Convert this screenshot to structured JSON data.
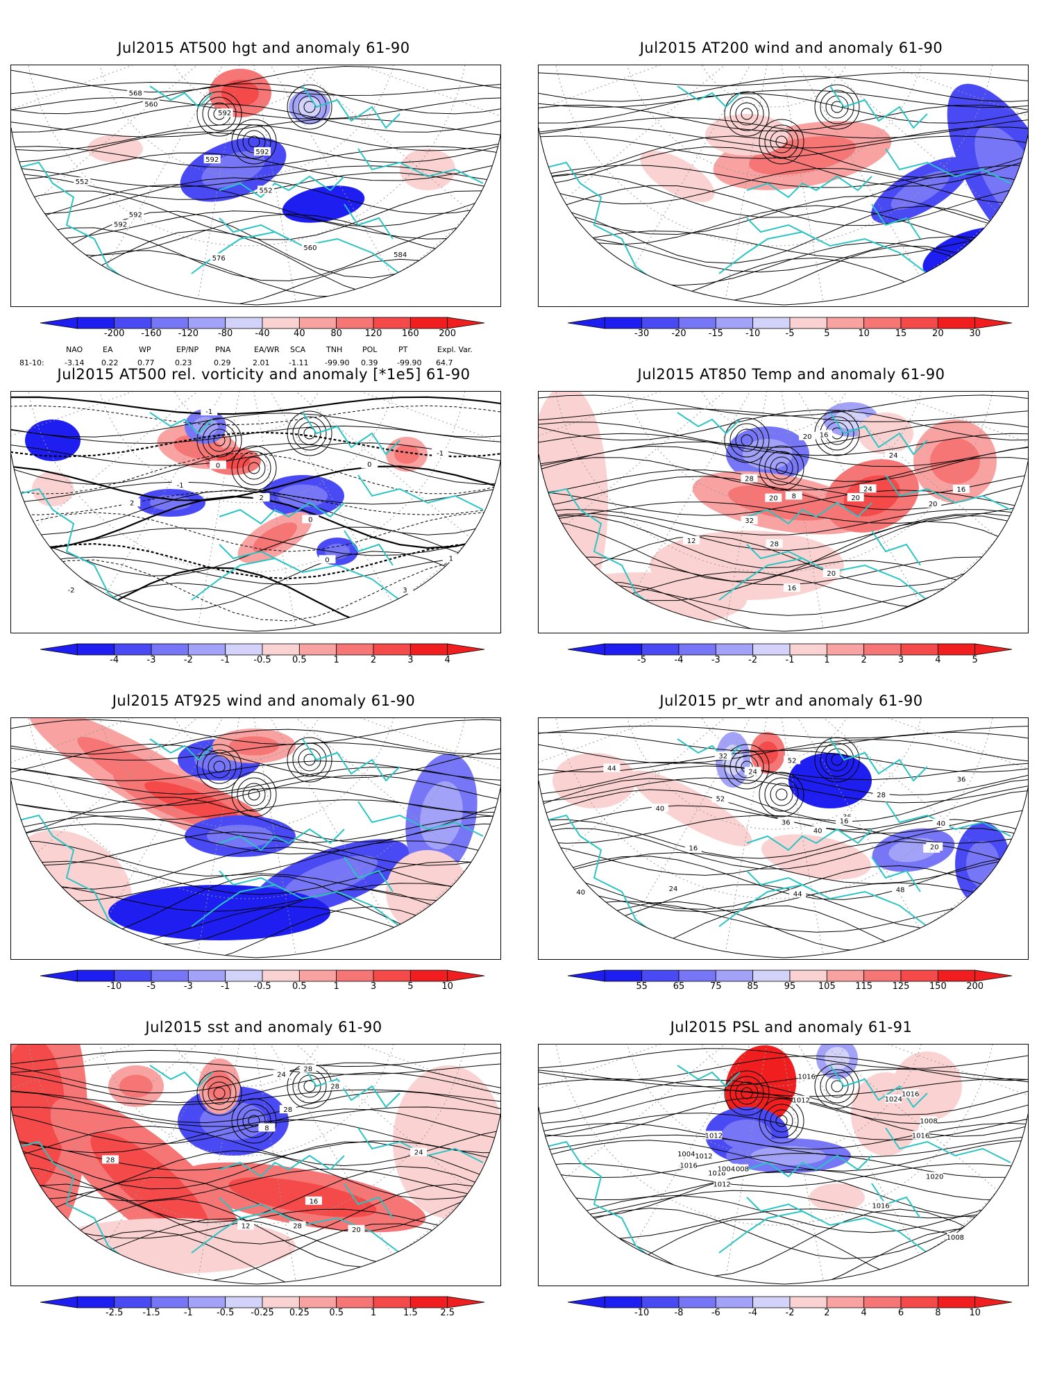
{
  "panels": [
    {
      "id": "p1",
      "title": "Jul2015 AT500 hgt and anomaly 61-90",
      "col": 0,
      "row": 0,
      "ticks": [
        "-200",
        "-160",
        "-120",
        "-80",
        "-40",
        "40",
        "80",
        "120",
        "160",
        "200"
      ],
      "map_variant": "hgt",
      "contour_labels": [
        "592",
        "560",
        "552",
        "552",
        "560",
        "568",
        "576",
        "592",
        "592",
        "592",
        "592",
        "584"
      ]
    },
    {
      "id": "p2",
      "title": "Jul2015 AT200 wind and anomaly 61-90",
      "col": 1,
      "row": 0,
      "ticks": [
        "-30",
        "-20",
        "-15",
        "-10",
        "-5",
        "5",
        "10",
        "15",
        "20",
        "30"
      ],
      "map_variant": "wind",
      "contour_labels": []
    },
    {
      "id": "p3",
      "title": "Jul2015 AT500 rel. vorticity and anomaly [*1e5] 61-90",
      "col": 0,
      "row": 1,
      "ticks": [
        "-4",
        "-3",
        "-2",
        "-1",
        "-0.5",
        "0.5",
        "1",
        "2",
        "3",
        "4"
      ],
      "map_variant": "vort",
      "contour_labels": [
        "0",
        "-1",
        "2",
        "3",
        "-2",
        "-1",
        "1",
        "0",
        "0",
        "-1",
        "2",
        "0"
      ]
    },
    {
      "id": "p4",
      "title": "Jul2015 AT850 Temp and anomaly 61-90",
      "col": 1,
      "row": 1,
      "ticks": [
        "-5",
        "-4",
        "-3",
        "-2",
        "-1",
        "1",
        "2",
        "3",
        "4",
        "5"
      ],
      "map_variant": "temp",
      "contour_labels": [
        "20",
        "20",
        "8",
        "12",
        "16",
        "20",
        "24",
        "28",
        "28",
        "24",
        "20",
        "20",
        "32",
        "16",
        "16"
      ]
    },
    {
      "id": "p5",
      "title": "Jul2015 AT925 wind and anomaly 61-90",
      "col": 0,
      "row": 2,
      "ticks": [
        "-10",
        "-5",
        "-3",
        "-1",
        "-0.5",
        "0.5",
        "1",
        "3",
        "5",
        "10"
      ],
      "map_variant": "wind925",
      "contour_labels": []
    },
    {
      "id": "p6",
      "title": "Jul2015 pr_wtr and anomaly 61-90",
      "col": 1,
      "row": 2,
      "ticks": [
        "55",
        "65",
        "75",
        "85",
        "95",
        "105",
        "115",
        "125",
        "150",
        "200"
      ],
      "map_variant": "prwtr",
      "contour_labels": [
        "52",
        "36",
        "40",
        "44",
        "28",
        "36",
        "32",
        "44",
        "40",
        "36",
        "16",
        "24",
        "20",
        "24",
        "40",
        "48",
        "52",
        "44",
        "40",
        "16"
      ]
    },
    {
      "id": "p7",
      "title": "Jul2015 sst and anomaly 61-90",
      "col": 0,
      "row": 3,
      "ticks": [
        "-2.5",
        "-1.5",
        "-1",
        "-0.5",
        "-0.25",
        "0.25",
        "0.5",
        "1",
        "1.5",
        "2.5"
      ],
      "map_variant": "sst",
      "contour_labels": [
        "28",
        "28",
        "8",
        "12",
        "16",
        "20",
        "28",
        "24",
        "28",
        "24",
        "28"
      ]
    },
    {
      "id": "p8",
      "title": "Jul2015 PSL and anomaly 61-91",
      "col": 1,
      "row": 3,
      "ticks": [
        "-10",
        "-8",
        "-6",
        "-4",
        "-2",
        "2",
        "4",
        "6",
        "8",
        "10"
      ],
      "map_variant": "psl",
      "contour_labels": [
        "1016",
        "1016",
        "1008",
        "1020",
        "1012",
        "1016",
        "1008",
        "1004",
        "1020",
        "1012",
        "1016",
        "1024",
        "1016",
        "1012",
        "1008",
        "1004",
        "1012",
        "1016"
      ]
    }
  ],
  "teleconnection": {
    "headers": [
      "NAO",
      "EA",
      "WP",
      "EP/NP",
      "PNA",
      "EA/WR",
      "SCA",
      "TNH",
      "POL",
      "PT",
      "Expl. Var."
    ],
    "row_label": "81-10:",
    "values": [
      "-3.14",
      "0.22",
      "0.77",
      "0.23",
      "0.29",
      "2.01",
      "-1.11",
      "-99.90",
      "0.39",
      "-99.90",
      "64.7"
    ]
  },
  "colors": {
    "neg": [
      "#1e1ef0",
      "#4a4af4",
      "#7676f6",
      "#a2a2f8",
      "#d2d2fb"
    ],
    "pos": [
      "#fbd2d2",
      "#f8a2a2",
      "#f67676",
      "#f44a4a",
      "#f01e1e"
    ],
    "coast": "#2bc4c4"
  }
}
